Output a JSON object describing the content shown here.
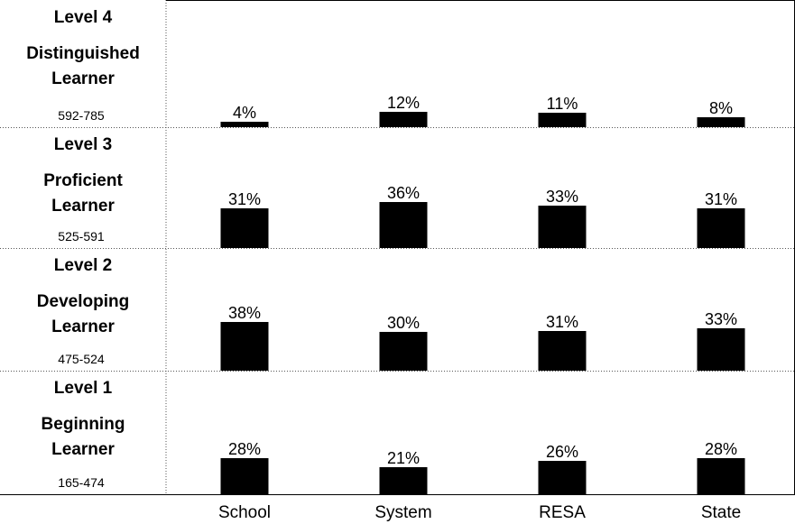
{
  "chart_data": {
    "type": "bar",
    "categories": [
      "School",
      "System",
      "RESA",
      "State"
    ],
    "levels": [
      {
        "lines": [
          "Level 4",
          "Distinguished",
          "Learner"
        ],
        "range": "592-785",
        "values": [
          4,
          12,
          11,
          8
        ]
      },
      {
        "lines": [
          "Level 3",
          "Proficient",
          "Learner"
        ],
        "range": "525-591",
        "values": [
          31,
          36,
          33,
          31
        ]
      },
      {
        "lines": [
          "Level 2",
          "Developing",
          "Learner"
        ],
        "range": "475-524",
        "values": [
          38,
          30,
          31,
          33
        ]
      },
      {
        "lines": [
          "Level 1",
          "Beginning",
          "Learner"
        ],
        "range": "165-474",
        "values": [
          28,
          21,
          26,
          28
        ]
      }
    ],
    "value_suffix": "%",
    "bar_color": "#000000"
  }
}
